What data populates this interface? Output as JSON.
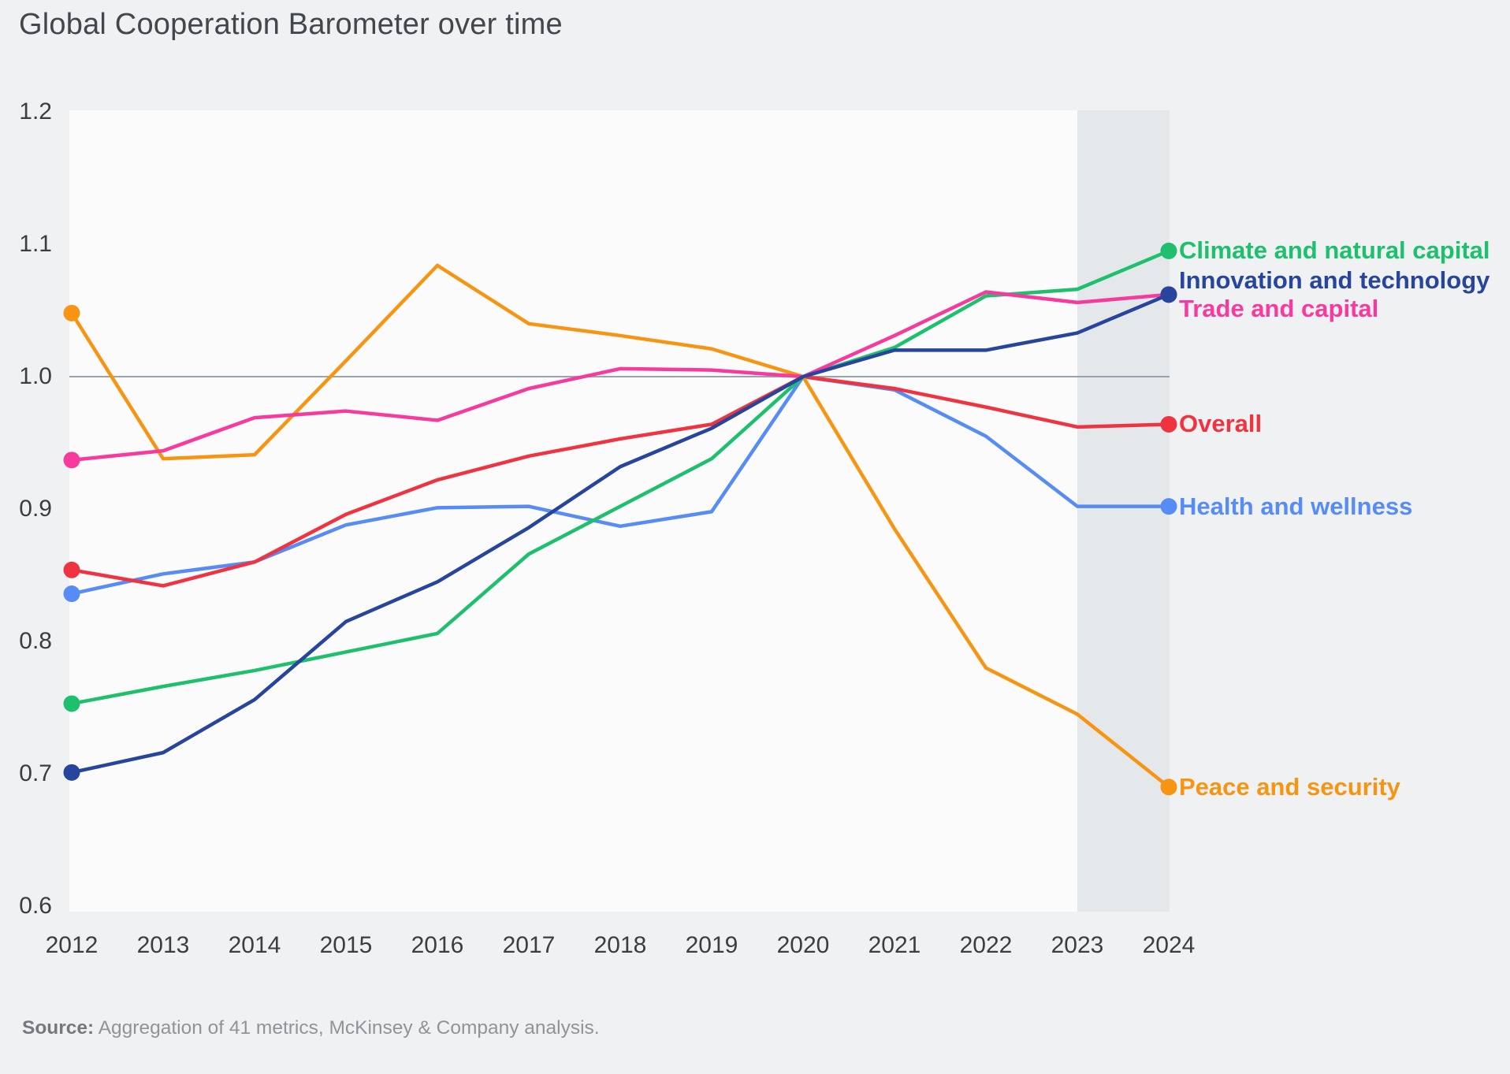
{
  "title": "Global Cooperation Barometer over time",
  "source": {
    "label": "Source:",
    "text": "Aggregation of 41 metrics, McKinsey & Company analysis."
  },
  "colors": {
    "page_bg": "#eff1f2",
    "plot_bg": "#fafbfa",
    "highlight_band": "#e5e8ea",
    "gridline": "#9aa2ab",
    "axis_text": "#3a3e43",
    "title_text": "#42464d"
  },
  "chart_data": {
    "type": "line",
    "x": [
      2012,
      2013,
      2014,
      2015,
      2016,
      2017,
      2018,
      2019,
      2020,
      2021,
      2022,
      2023,
      2024
    ],
    "series": [
      {
        "name": "Climate and natural capital",
        "color": "#1ec06d",
        "values": [
          0.753,
          0.766,
          0.778,
          0.792,
          0.806,
          0.866,
          0.902,
          0.938,
          1.0,
          1.022,
          1.061,
          1.066,
          1.095
        ]
      },
      {
        "name": "Innovation and technology",
        "color": "#27459c",
        "values": [
          0.701,
          0.716,
          0.756,
          0.815,
          0.845,
          0.886,
          0.932,
          0.961,
          1.0,
          1.02,
          1.02,
          1.033,
          1.062
        ]
      },
      {
        "name": "Trade and capital",
        "color": "#f73a9e",
        "values": [
          0.937,
          0.944,
          0.969,
          0.974,
          0.967,
          0.991,
          1.006,
          1.005,
          1.0,
          1.031,
          1.064,
          1.056,
          1.062
        ]
      },
      {
        "name": "Overall",
        "color": "#ef3340",
        "values": [
          0.854,
          0.842,
          0.86,
          0.896,
          0.922,
          0.94,
          0.953,
          0.964,
          1.0,
          0.991,
          0.977,
          0.962,
          0.964
        ]
      },
      {
        "name": "Health and wellness",
        "color": "#578bf5",
        "values": [
          0.836,
          0.851,
          0.86,
          0.888,
          0.901,
          0.902,
          0.887,
          0.898,
          1.0,
          0.99,
          0.955,
          0.902,
          0.902
        ]
      },
      {
        "name": "Peace and security",
        "color": "#f79412",
        "values": [
          1.048,
          0.938,
          0.941,
          1.012,
          1.084,
          1.04,
          1.031,
          1.021,
          1.0,
          0.885,
          0.78,
          0.745,
          0.69
        ]
      }
    ],
    "ylim": [
      0.6,
      1.2
    ],
    "yticks": [
      1.2,
      1.1,
      1.0,
      0.9,
      0.8,
      0.7,
      0.6
    ],
    "baseline": 1.0,
    "highlight_band_years": [
      2023,
      2024
    ],
    "grid": "baseline-only",
    "legend_position": "right",
    "endpoint_dots": true
  }
}
